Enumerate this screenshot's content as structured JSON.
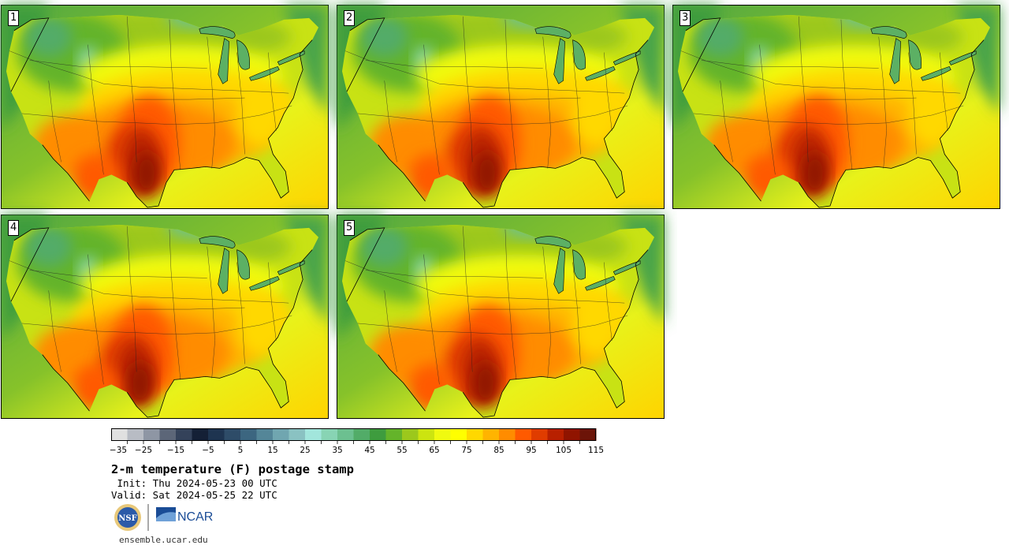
{
  "panels": [
    {
      "label": "1",
      "ocean": "#4a9e3c",
      "hot_shift": 0
    },
    {
      "label": "2",
      "ocean": "#4a9e3c",
      "hot_shift": 6
    },
    {
      "label": "3",
      "ocean": "#4a9e3c",
      "hot_shift": -4
    },
    {
      "label": "4",
      "ocean": "#4a9e3c",
      "hot_shift": -8
    },
    {
      "label": "5",
      "ocean": "#4a9e3c",
      "hot_shift": 4
    }
  ],
  "colorbar": {
    "min": -35,
    "max": 120,
    "step": 5,
    "tick_labels": [
      "−35",
      "−25",
      "−15",
      "−5",
      "5",
      "15",
      "25",
      "35",
      "45",
      "55",
      "65",
      "75",
      "85",
      "95",
      "105",
      "115"
    ],
    "colors": [
      "#e0e0e0",
      "#b8bcc4",
      "#8e96a4",
      "#5c6678",
      "#34425a",
      "#142036",
      "#1e3450",
      "#2e4c68",
      "#3c6680",
      "#548698",
      "#70a6b0",
      "#8ac2c2",
      "#a2e6dc",
      "#88d4b4",
      "#6cc090",
      "#52ac68",
      "#3e9c3e",
      "#64b42a",
      "#9cc81c",
      "#cce410",
      "#f0fa10",
      "#ffff00",
      "#ffd800",
      "#ffb400",
      "#ff8c00",
      "#ff5a00",
      "#e03c00",
      "#b82000",
      "#901400",
      "#6c1408"
    ]
  },
  "title": "2-m temperature (F) postage stamp",
  "init": " Init: Thu 2024-05-23 00 UTC",
  "valid": "Valid: Sat 2024-05-25 22 UTC",
  "logos": {
    "nsf": "NSF",
    "ncar": "NCAR"
  },
  "footer": "ensemble.ucar.edu"
}
